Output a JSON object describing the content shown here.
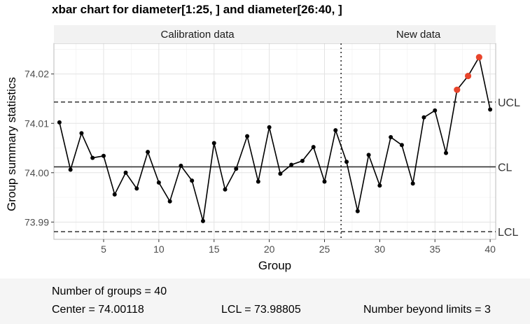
{
  "chart_title": "xbar chart for diameter[1:25, ] and diameter[26:40, ]",
  "chart_data": {
    "type": "line",
    "title": "xbar chart for diameter[1:25, ] and diameter[26:40, ]",
    "xlabel": "Group",
    "ylabel": "Group summary statistics",
    "xlim": [
      0.5,
      40.5
    ],
    "ylim": [
      73.9865,
      74.0262
    ],
    "xticks": [
      5,
      10,
      15,
      20,
      25,
      30,
      35,
      40
    ],
    "yticks": [
      73.99,
      74.0,
      74.01,
      74.02
    ],
    "ytick_labels": [
      "73.99",
      "74.00",
      "74.01",
      "74.02"
    ],
    "grid": true,
    "panel_labels": [
      "Calibration data",
      "New data"
    ],
    "separator_x": 26.5,
    "x": [
      1,
      2,
      3,
      4,
      5,
      6,
      7,
      8,
      9,
      10,
      11,
      12,
      13,
      14,
      15,
      16,
      17,
      18,
      19,
      20,
      21,
      22,
      23,
      24,
      25,
      26,
      27,
      28,
      29,
      30,
      31,
      32,
      33,
      34,
      35,
      36,
      37,
      38,
      39,
      40
    ],
    "values": [
      74.0102,
      74.0006,
      74.008,
      74.003,
      74.0034,
      73.9956,
      74.0,
      73.9968,
      74.0042,
      73.998,
      73.9942,
      74.0014,
      73.9984,
      73.9902,
      74.006,
      73.9966,
      74.0008,
      74.0074,
      73.9982,
      74.0092,
      73.9998,
      74.0016,
      74.0024,
      74.0052,
      73.9982,
      74.0086,
      74.0022,
      73.9922,
      74.0036,
      73.9974,
      74.0072,
      74.0056,
      73.9978,
      74.0112,
      74.0126,
      74.004,
      74.0168,
      74.0196,
      74.0234,
      74.0128
    ],
    "beyond_limits": [
      37,
      38,
      39
    ],
    "center": 74.00118,
    "ucl": 74.01431,
    "lcl": 73.98805,
    "limit_labels": {
      "ucl": "UCL",
      "cl": "CL",
      "lcl": "LCL"
    },
    "colors": {
      "line": "#000000",
      "point": "#000000",
      "violation": "#e8452c",
      "panel_bg": "#ffffff",
      "grid": "#e3e3e3",
      "border": "#bbbbbb",
      "strip_bg": "#f2f2f2"
    }
  },
  "stats": {
    "groups": "Number of groups = 40",
    "center": "Center = 74.00118",
    "lcl": "LCL = 73.98805",
    "beyond": "Number beyond limits = 3"
  }
}
